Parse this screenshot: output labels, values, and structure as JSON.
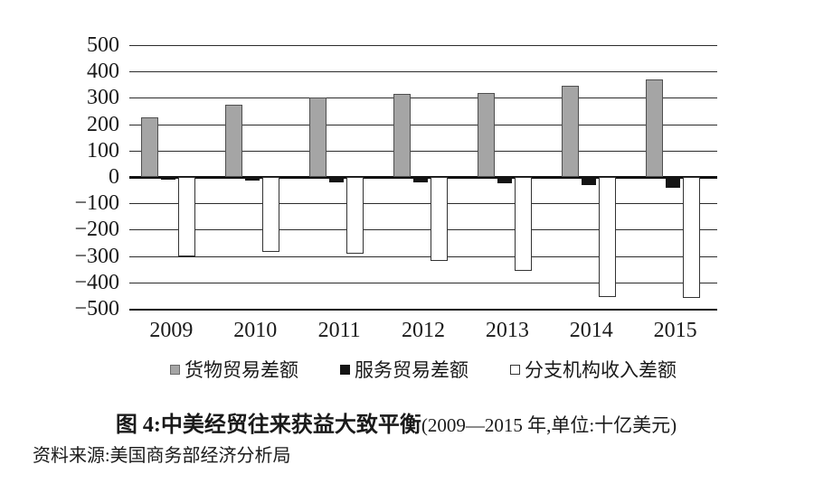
{
  "chart_data": {
    "type": "bar",
    "title": "图 4:中美经贸往来获益大致平衡(2009—2015 年,单位:十亿美元)",
    "categories": [
      "2009",
      "2010",
      "2011",
      "2012",
      "2013",
      "2014",
      "2015"
    ],
    "series": [
      {
        "key": "goods",
        "name": "货物贸易差额",
        "color": "#a5a5a5",
        "values": [
          225,
          275,
          300,
          315,
          320,
          345,
          370
        ]
      },
      {
        "key": "services",
        "name": "服务贸易差额",
        "color": "#141414",
        "values": [
          -10,
          -15,
          -20,
          -20,
          -25,
          -30,
          -40
        ]
      },
      {
        "key": "branch",
        "name": "分支机构收入差额",
        "color": "#ffffff",
        "values": [
          -300,
          -285,
          -290,
          -320,
          -355,
          -455,
          -460
        ]
      }
    ],
    "ylim": [
      -500,
      500
    ],
    "ytick_step": 100,
    "yticks": [
      "500",
      "400",
      "300",
      "200",
      "100",
      "0",
      "−100",
      "−200",
      "−300",
      "−400",
      "−500"
    ],
    "grid": true,
    "legend_position": "bottom",
    "gridline_color": "#2b2b2b",
    "text_color": "#1a1a1a"
  },
  "caption": {
    "prefix": "图 4:",
    "main": "中美经贸往来获益大致平衡",
    "paren": "(2009—2015 年,单位:十亿美元)"
  },
  "source": {
    "text": "资料来源:美国商务部经济分析局"
  }
}
